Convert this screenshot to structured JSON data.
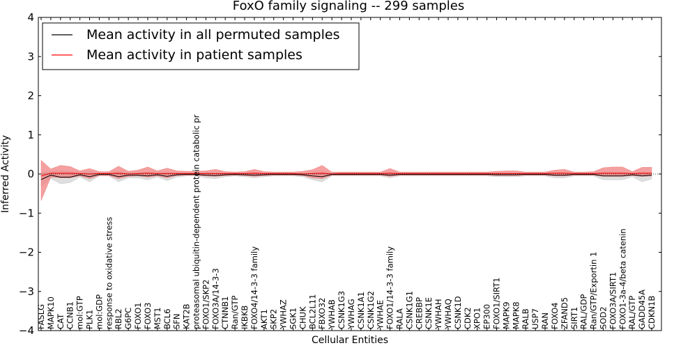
{
  "chart_data": {
    "type": "line",
    "title": "FoxO family signaling -- 299 samples",
    "xlabel": "Cellular Entities",
    "ylabel": "Inferred Activity",
    "ylim": [
      -4,
      4
    ],
    "yticks": [
      -4,
      -3,
      -2,
      -1,
      0,
      1,
      2,
      3,
      4
    ],
    "ytick_labels": [
      "−4",
      "−3",
      "−2",
      "−1",
      "0",
      "1",
      "2",
      "3",
      "4"
    ],
    "categories": [
      "FASLG",
      "MAPK10",
      "CAT",
      "CCNB1",
      "mol:GTP",
      "PLK1",
      "mol:GDP",
      "response to oxidative stress",
      "RBL2",
      "G6PC",
      "FOXO1",
      "FOXO3",
      "MST1",
      "BCL6",
      "SFN",
      "KAT2B",
      "proteasomal ubiquitin-dependent protein catabolic pr",
      "FOXO1/SKP2",
      "FOXO3A/14-3-3",
      "CTNNB1",
      "Ran/GTP",
      "IKBKB",
      "FOXO4/14-3-3 family",
      "AKT1",
      "SKP2",
      "YWHAZ",
      "SGK1",
      "CHUK",
      "BCL2L11",
      "FBXO32",
      "YWHAB",
      "CSNK1G3",
      "YWHAG",
      "CSNK1A1",
      "CSNK1G2",
      "YWHAE",
      "FOXO1/14-3-3 family",
      "RALA",
      "CSNK1G1",
      "CREBBP",
      "CSNK1E",
      "YWHAH",
      "YWHAQ",
      "CSNK1D",
      "CDK2",
      "XPO1",
      "EP300",
      "FOXO1/SIRT1",
      "MAPK9",
      "MAPK8",
      "RALB",
      "USP7",
      "RAN",
      "FOXO4",
      "ZFAND5",
      "SIRT1",
      "RAL/GDP",
      "Ran/GTP/Exportin 1",
      "SOD2",
      "FOXO3A/SIRT1",
      "FOXO1-3a-4/beta catenin",
      "RAL/GTP",
      "GADD45A",
      "CDKN1B"
    ],
    "legend_position": "upper-left",
    "series": [
      {
        "name": "Mean activity in all permuted samples",
        "color": "#000000",
        "band_color": "#cccccc",
        "values": [
          -0.14,
          -0.03,
          -0.08,
          -0.08,
          -0.02,
          -0.07,
          -0.01,
          -0.01,
          -0.07,
          -0.03,
          -0.03,
          -0.05,
          -0.02,
          -0.06,
          -0.02,
          -0.01,
          -0.01,
          -0.03,
          -0.04,
          -0.02,
          -0.01,
          -0.02,
          -0.03,
          -0.02,
          -0.01,
          -0.01,
          -0.01,
          -0.02,
          -0.05,
          -0.07,
          -0.01,
          -0.01,
          -0.01,
          -0.01,
          -0.01,
          -0.01,
          -0.03,
          -0.01,
          -0.01,
          -0.01,
          -0.01,
          -0.01,
          -0.01,
          -0.01,
          -0.01,
          -0.01,
          -0.01,
          -0.02,
          -0.02,
          -0.02,
          -0.01,
          -0.01,
          -0.01,
          -0.03,
          -0.03,
          -0.01,
          -0.01,
          -0.01,
          -0.05,
          -0.05,
          -0.05,
          -0.02,
          -0.05,
          -0.03
        ],
        "band_low": [
          -0.32,
          -0.12,
          -0.25,
          -0.22,
          -0.08,
          -0.2,
          -0.05,
          -0.05,
          -0.2,
          -0.1,
          -0.1,
          -0.15,
          -0.08,
          -0.17,
          -0.08,
          -0.05,
          -0.05,
          -0.1,
          -0.12,
          -0.07,
          -0.05,
          -0.07,
          -0.1,
          -0.07,
          -0.05,
          -0.05,
          -0.05,
          -0.07,
          -0.15,
          -0.2,
          -0.05,
          -0.05,
          -0.05,
          -0.05,
          -0.05,
          -0.05,
          -0.1,
          -0.05,
          -0.05,
          -0.05,
          -0.05,
          -0.05,
          -0.05,
          -0.05,
          -0.05,
          -0.05,
          -0.05,
          -0.07,
          -0.07,
          -0.07,
          -0.05,
          -0.05,
          -0.05,
          -0.1,
          -0.1,
          -0.05,
          -0.05,
          -0.05,
          -0.15,
          -0.15,
          -0.15,
          -0.07,
          -0.2,
          -0.13
        ],
        "band_high": [
          0.04,
          0.06,
          0.09,
          0.06,
          0.04,
          0.06,
          0.03,
          0.03,
          0.06,
          0.04,
          0.04,
          0.05,
          0.04,
          0.05,
          0.04,
          0.03,
          0.03,
          0.04,
          0.04,
          0.03,
          0.03,
          0.03,
          0.04,
          0.03,
          0.03,
          0.03,
          0.03,
          0.03,
          0.05,
          0.06,
          0.03,
          0.03,
          0.03,
          0.03,
          0.03,
          0.03,
          0.04,
          0.03,
          0.03,
          0.03,
          0.03,
          0.03,
          0.03,
          0.03,
          0.03,
          0.03,
          0.03,
          0.03,
          0.03,
          0.03,
          0.03,
          0.03,
          0.03,
          0.04,
          0.04,
          0.03,
          0.03,
          0.03,
          0.05,
          0.05,
          0.05,
          0.03,
          0.05,
          0.04
        ]
      },
      {
        "name": "Mean activity in patient samples",
        "color": "#ff0000",
        "band_color": "#f08080",
        "values": [
          -0.05,
          0.02,
          0.02,
          0.02,
          0.01,
          0.0,
          0.01,
          0.01,
          0.02,
          0.0,
          0.01,
          0.02,
          0.01,
          0.01,
          0.01,
          0.01,
          0.01,
          0.01,
          0.01,
          0.01,
          0.01,
          0.01,
          0.02,
          0.01,
          0.01,
          0.01,
          0.01,
          0.0,
          0.01,
          0.02,
          0.0,
          0.01,
          0.01,
          0.01,
          0.01,
          0.01,
          0.02,
          0.01,
          0.01,
          0.01,
          0.01,
          0.01,
          0.01,
          0.01,
          0.01,
          0.01,
          0.01,
          0.01,
          0.01,
          0.01,
          0.01,
          0.01,
          0.01,
          0.02,
          0.02,
          0.01,
          0.01,
          0.01,
          0.02,
          0.02,
          0.02,
          0.01,
          0.02,
          0.02
        ],
        "band_low": [
          -0.68,
          -0.08,
          -0.1,
          -0.1,
          -0.05,
          -0.12,
          -0.04,
          -0.04,
          -0.12,
          -0.06,
          -0.05,
          -0.08,
          -0.05,
          -0.1,
          -0.04,
          -0.03,
          -0.03,
          -0.05,
          -0.06,
          -0.04,
          -0.03,
          -0.04,
          -0.06,
          -0.04,
          -0.03,
          -0.03,
          -0.03,
          -0.04,
          -0.1,
          -0.12,
          -0.03,
          -0.03,
          -0.03,
          -0.03,
          -0.03,
          -0.03,
          -0.06,
          -0.03,
          -0.03,
          -0.03,
          -0.03,
          -0.03,
          -0.03,
          -0.03,
          -0.03,
          -0.03,
          -0.03,
          -0.04,
          -0.04,
          -0.04,
          -0.03,
          -0.03,
          -0.03,
          -0.05,
          -0.05,
          -0.03,
          -0.03,
          -0.03,
          -0.06,
          -0.06,
          -0.06,
          -0.04,
          -0.06,
          -0.05
        ],
        "band_high": [
          0.35,
          0.13,
          0.22,
          0.19,
          0.08,
          0.14,
          0.06,
          0.06,
          0.2,
          0.07,
          0.1,
          0.18,
          0.08,
          0.15,
          0.08,
          0.07,
          0.07,
          0.08,
          0.12,
          0.06,
          0.05,
          0.06,
          0.12,
          0.06,
          0.05,
          0.05,
          0.05,
          0.07,
          0.11,
          0.22,
          0.05,
          0.05,
          0.05,
          0.05,
          0.05,
          0.05,
          0.14,
          0.05,
          0.05,
          0.05,
          0.05,
          0.05,
          0.05,
          0.05,
          0.05,
          0.05,
          0.05,
          0.07,
          0.08,
          0.08,
          0.05,
          0.05,
          0.05,
          0.1,
          0.12,
          0.05,
          0.05,
          0.06,
          0.16,
          0.18,
          0.18,
          0.06,
          0.17,
          0.17
        ]
      }
    ]
  }
}
